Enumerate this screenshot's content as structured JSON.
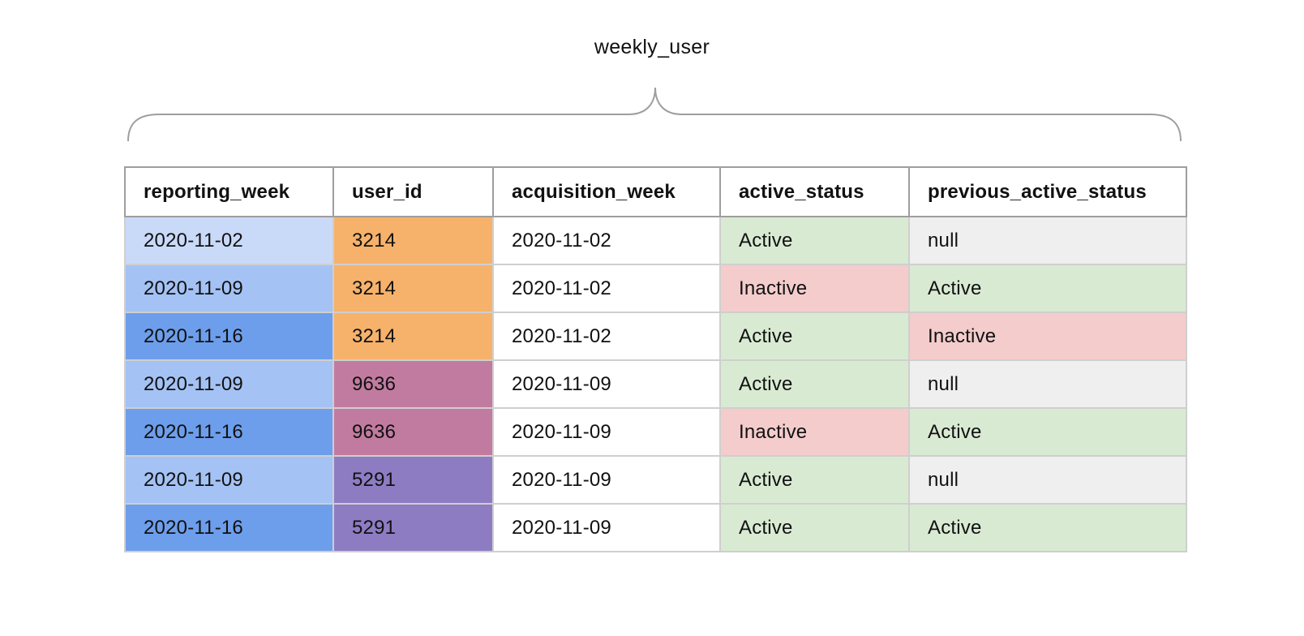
{
  "title": "weekly_user",
  "columns": [
    "reporting_week",
    "user_id",
    "acquisition_week",
    "active_status",
    "previous_active_status"
  ],
  "rows": [
    [
      "2020-11-02",
      "3214",
      "2020-11-02",
      "Active",
      "null"
    ],
    [
      "2020-11-09",
      "3214",
      "2020-11-02",
      "Inactive",
      "Active"
    ],
    [
      "2020-11-16",
      "3214",
      "2020-11-02",
      "Active",
      "Inactive"
    ],
    [
      "2020-11-09",
      "9636",
      "2020-11-09",
      "Active",
      "null"
    ],
    [
      "2020-11-16",
      "9636",
      "2020-11-09",
      "Inactive",
      "Active"
    ],
    [
      "2020-11-09",
      "5291",
      "2020-11-09",
      "Active",
      "null"
    ],
    [
      "2020-11-16",
      "5291",
      "2020-11-09",
      "Active",
      "Active"
    ]
  ],
  "colors": {
    "week": {
      "2020-11-02": "#c9d9f8",
      "2020-11-09": "#a4c2f4",
      "2020-11-16": "#6d9eeb"
    },
    "user": {
      "3214": "#f6b26b",
      "9636": "#c27ba0",
      "5291": "#8e7cc3"
    },
    "status": {
      "Active": "#d9ead3",
      "Inactive": "#f4cccc",
      "null": "#efefef"
    },
    "plain": "#ffffff",
    "brace": "#9e9e9e"
  }
}
